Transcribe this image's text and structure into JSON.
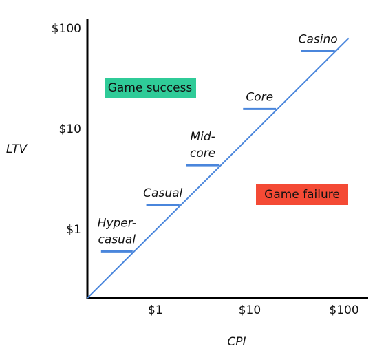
{
  "chart_data": {
    "type": "log-line",
    "x_label": "CPI",
    "y_label": "LTV",
    "xlim": [
      0.19,
      180
    ],
    "ylim": [
      0.21,
      125
    ],
    "log_x": true,
    "log_y": true,
    "xticks": [
      {
        "value": 1,
        "label": "$1"
      },
      {
        "value": 10,
        "label": "$10"
      },
      {
        "value": 100,
        "label": "$100"
      }
    ],
    "yticks": [
      {
        "value": 1,
        "label": "$1"
      },
      {
        "value": 10,
        "label": "$10"
      },
      {
        "value": 100,
        "label": "$100"
      }
    ],
    "color": "#4a86dc",
    "line": {
      "x": [
        0.19,
        112
      ],
      "y": [
        0.21,
        81
      ]
    },
    "segments": [
      {
        "label": [
          "Hyper-",
          "casual"
        ],
        "x": [
          0.265,
          0.574
        ],
        "y": 0.61
      },
      {
        "label": [
          "Casual"
        ],
        "x": [
          0.8,
          1.8
        ],
        "y": 1.76
      },
      {
        "label": [
          "Mid-",
          "core"
        ],
        "x": [
          2.1,
          4.8
        ],
        "y": 4.4
      },
      {
        "label": [
          "Core"
        ],
        "x": [
          8.5,
          19
        ],
        "y": 16
      },
      {
        "label": [
          "Casino"
        ],
        "x": [
          35,
          80
        ],
        "y": 60
      }
    ],
    "annotations": [
      {
        "text": "Game success",
        "color": "#2fcb98"
      },
      {
        "text": "Game failure",
        "color": "#f44a35"
      }
    ]
  }
}
